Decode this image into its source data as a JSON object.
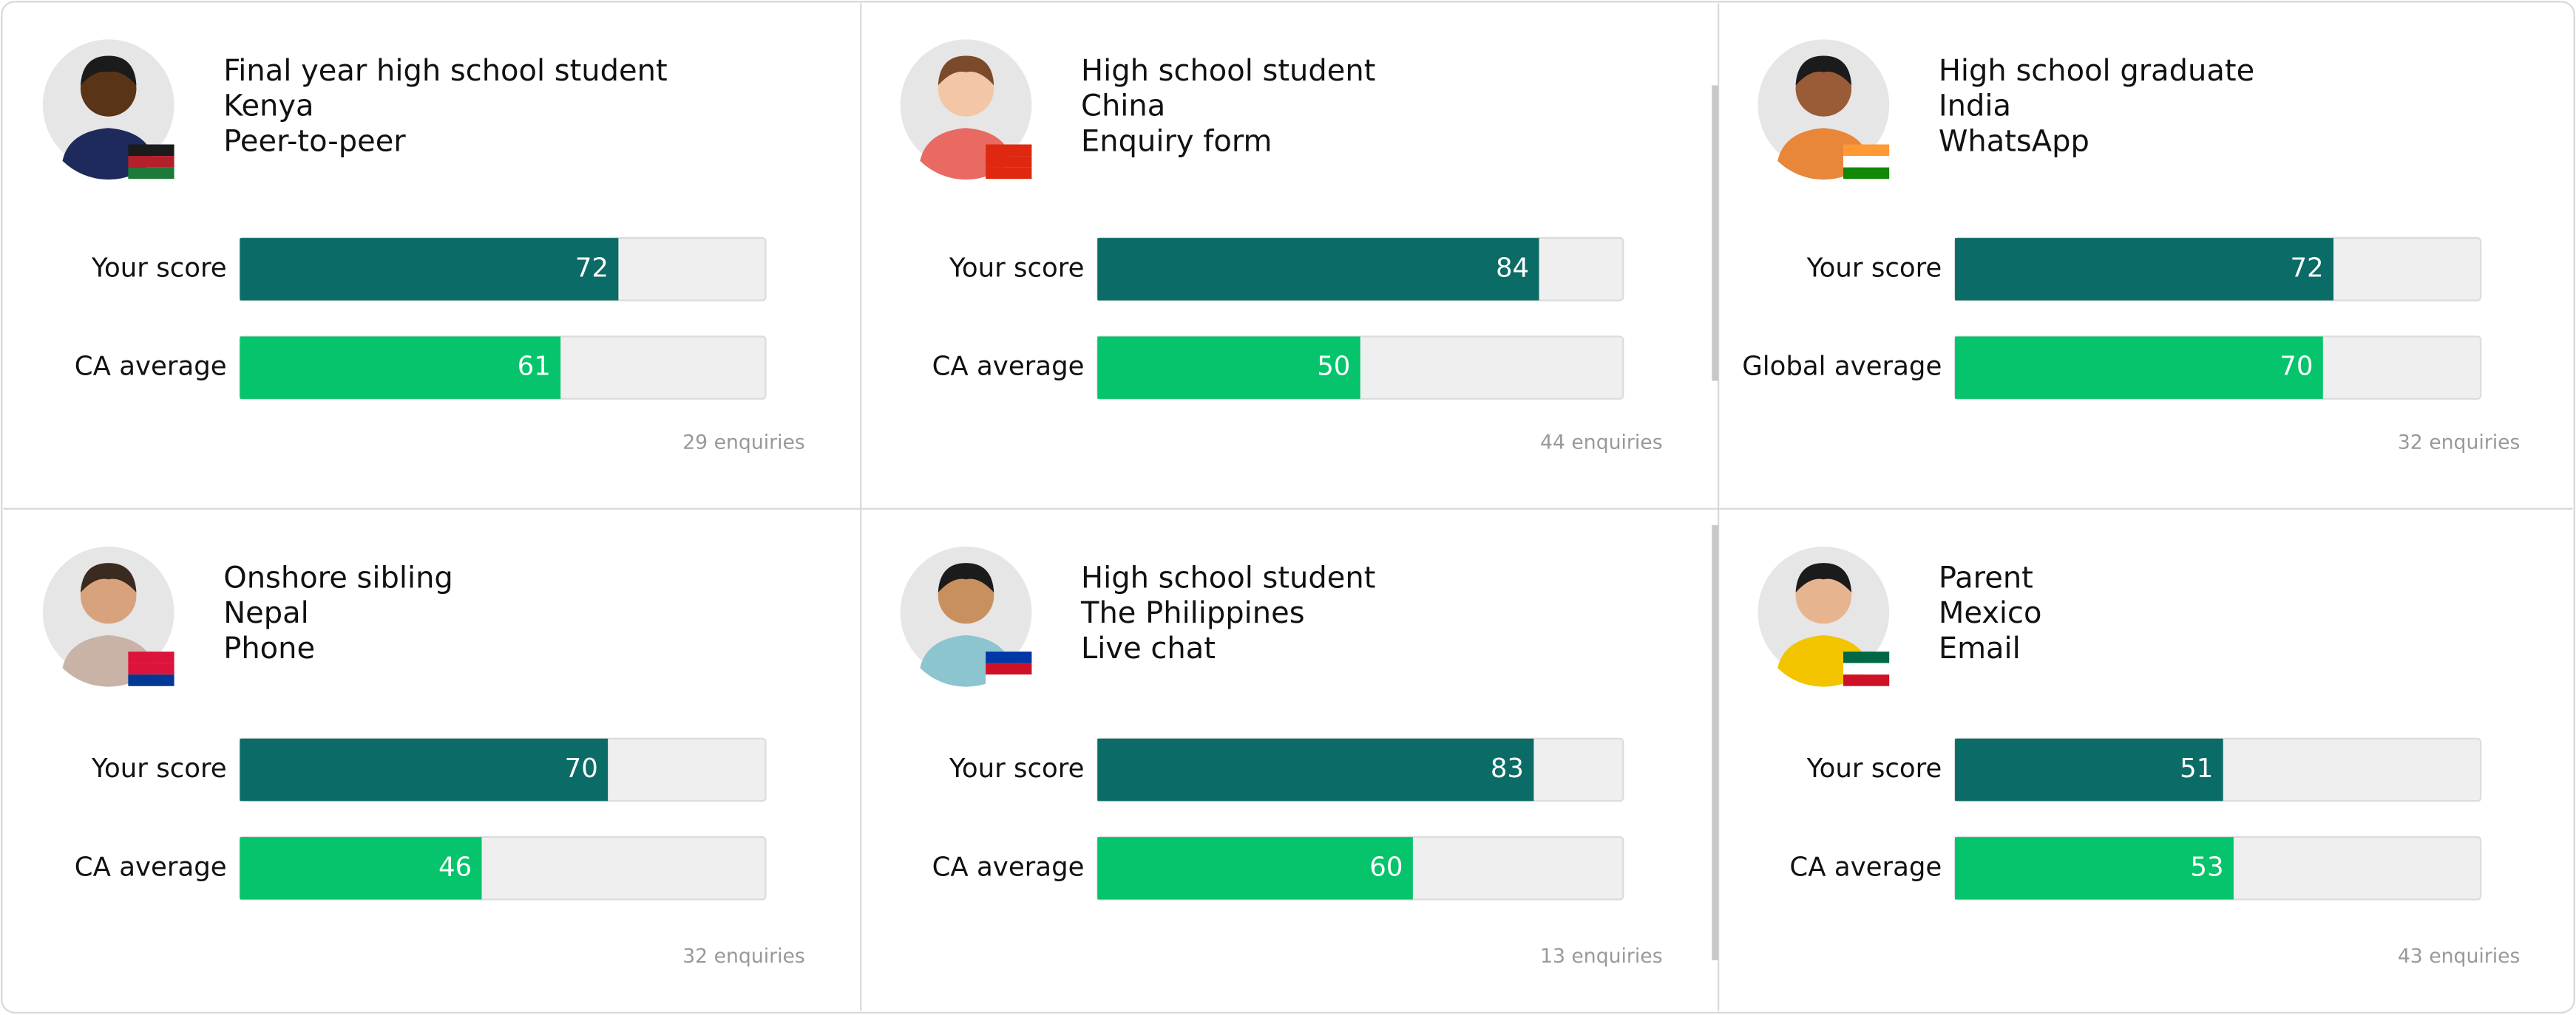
{
  "bar_range": [
    0,
    100
  ],
  "cards": [
    {
      "role": "Final year high school student",
      "country": "Kenya",
      "channel": "Peer-to-peer",
      "enquiries": "29 enquiries",
      "bars": [
        {
          "label": "Your score",
          "value": 72
        },
        {
          "label": "CA average",
          "value": 61
        }
      ]
    },
    {
      "role": "High school student",
      "country": "China",
      "channel": "Enquiry form",
      "enquiries": "44 enquiries",
      "bars": [
        {
          "label": "Your score",
          "value": 84
        },
        {
          "label": "CA average",
          "value": 50
        }
      ]
    },
    {
      "role": "High school graduate",
      "country": "India",
      "channel": "WhatsApp",
      "enquiries": "32 enquiries",
      "bars": [
        {
          "label": "Your score",
          "value": 72
        },
        {
          "label": "Global average",
          "value": 70
        }
      ]
    },
    {
      "role": "Onshore sibling",
      "country": "Nepal",
      "channel": "Phone",
      "enquiries": "32 enquiries",
      "bars": [
        {
          "label": "Your score",
          "value": 70
        },
        {
          "label": "CA average",
          "value": 46
        }
      ]
    },
    {
      "role": "High school student",
      "country": "The Philippines",
      "channel": "Live chat",
      "enquiries": "13 enquiries",
      "bars": [
        {
          "label": "Your score",
          "value": 83
        },
        {
          "label": "CA average",
          "value": 60
        }
      ]
    },
    {
      "role": "Parent",
      "country": "Mexico",
      "channel": "Email",
      "enquiries": "43 enquiries",
      "bars": [
        {
          "label": "Your score",
          "value": 51
        },
        {
          "label": "CA average",
          "value": 53
        }
      ]
    }
  ]
}
